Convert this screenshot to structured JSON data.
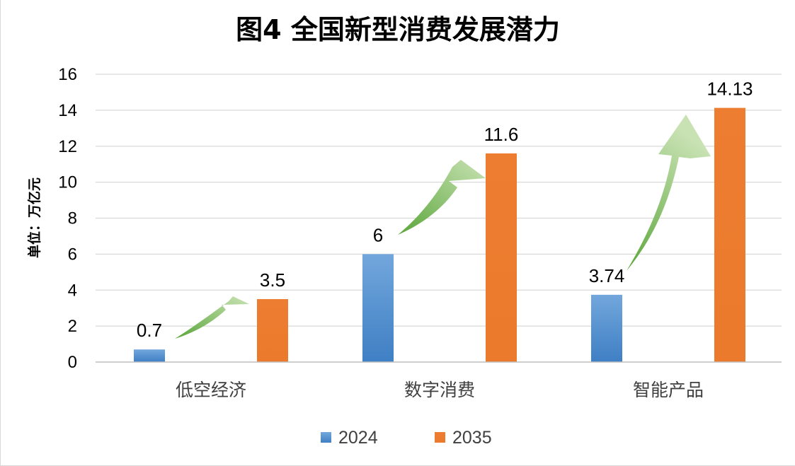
{
  "chart_data": {
    "type": "bar",
    "title": "图4  全国新型消费发展潜力",
    "xlabel": "",
    "ylabel": "单位：万亿元",
    "categories": [
      "低空经济",
      "数字消费",
      "智能产品"
    ],
    "series": [
      {
        "name": "2024",
        "values": [
          0.7,
          6,
          3.74
        ],
        "labels": [
          "0.7",
          "6",
          "3.74"
        ],
        "color": "#5b9bd5"
      },
      {
        "name": "2035",
        "values": [
          3.5,
          11.6,
          14.13
        ],
        "labels": [
          "3.5",
          "11.6",
          "14.13"
        ],
        "color": "#ed7d31"
      }
    ],
    "ylim": [
      0,
      16
    ],
    "yticks": [
      "0",
      "2",
      "4",
      "6",
      "8",
      "10",
      "12",
      "14",
      "16"
    ],
    "grid": true,
    "legend_position": "bottom",
    "annotations": "green growth arrows from each 2024 bar toward the 2035 bar"
  },
  "colors": {
    "series_2024": "#5b9bd5",
    "series_2035": "#ed7d31",
    "arrow_green": "#8dc465",
    "gridline": "#d9d9d9"
  }
}
